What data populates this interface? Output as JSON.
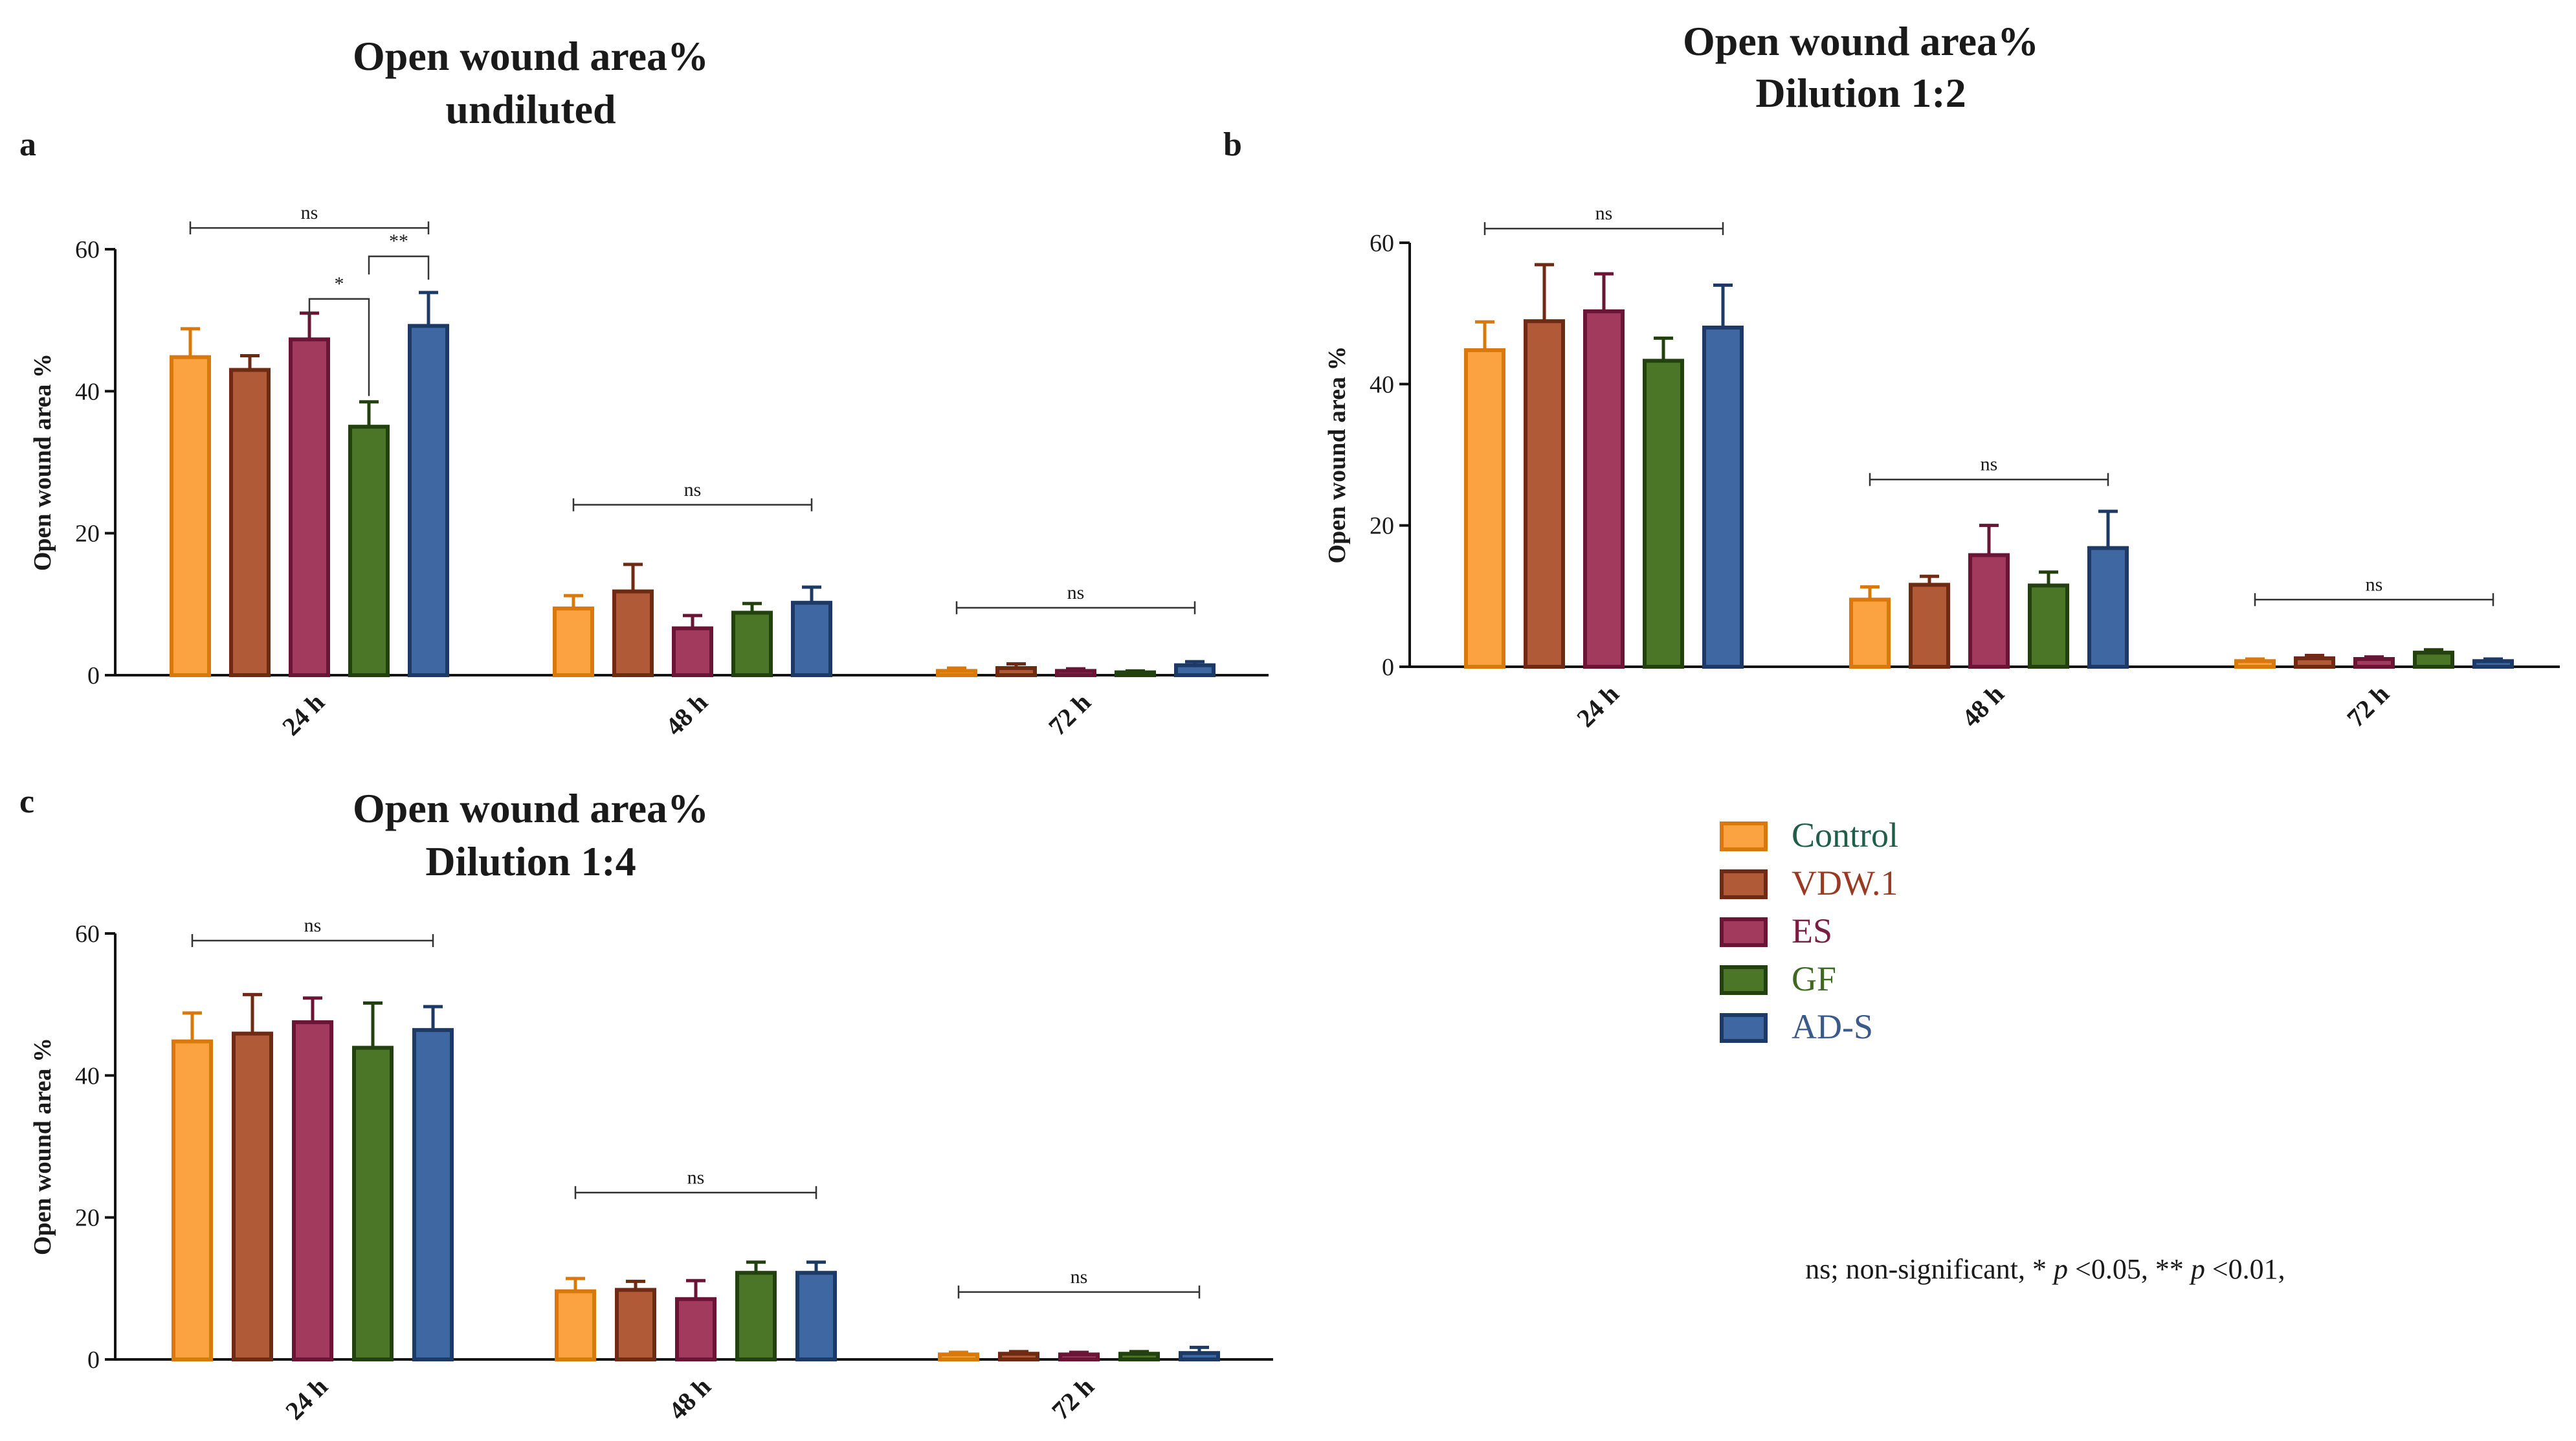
{
  "chart_data": [
    {
      "id": "a",
      "panel_letter": "a",
      "type": "bar",
      "title": [
        "Open wound area%",
        "undiluted"
      ],
      "ylabel": "Open wound area %",
      "ylim": [
        0,
        60
      ],
      "yticks": [
        0,
        20,
        40,
        60
      ],
      "categories": [
        "24 h",
        "48 h",
        "72 h"
      ],
      "series": [
        {
          "name": "Control",
          "values": [
            44.8,
            9.4,
            0.6
          ],
          "errors": [
            4.0,
            1.8,
            0.4
          ]
        },
        {
          "name": "VDW.1",
          "values": [
            43.0,
            11.8,
            1.0
          ],
          "errors": [
            2.0,
            3.8,
            0.6
          ]
        },
        {
          "name": "ES",
          "values": [
            47.3,
            6.6,
            0.6
          ],
          "errors": [
            3.7,
            1.8,
            0.3
          ]
        },
        {
          "name": "GF",
          "values": [
            35.0,
            8.8,
            0.4
          ],
          "errors": [
            3.5,
            1.3,
            0.2
          ]
        },
        {
          "name": "AD-S",
          "values": [
            49.2,
            10.2,
            1.4
          ],
          "errors": [
            4.7,
            2.2,
            0.5
          ]
        }
      ],
      "significance": [
        {
          "category": "24 h",
          "from": "Control",
          "to": "AD-S",
          "label": "ns",
          "level": 63
        },
        {
          "category": "24 h",
          "from": "ES",
          "to": "GF",
          "label": "*",
          "level": 53
        },
        {
          "category": "24 h",
          "from": "GF",
          "to": "AD-S",
          "label": "**",
          "level": 59
        },
        {
          "category": "48 h",
          "from": "Control",
          "to": "AD-S",
          "label": "ns",
          "level": 24
        },
        {
          "category": "72 h",
          "from": "Control",
          "to": "AD-S",
          "label": "ns",
          "level": 9.5
        }
      ]
    },
    {
      "id": "b",
      "panel_letter": "b",
      "type": "bar",
      "title": [
        "Open wound area%",
        "Dilution 1:2"
      ],
      "ylabel": "Open wound area %",
      "ylim": [
        0,
        60
      ],
      "yticks": [
        0,
        20,
        40,
        60
      ],
      "categories": [
        "24 h",
        "48 h",
        "72 h"
      ],
      "series": [
        {
          "name": "Control",
          "values": [
            44.8,
            9.5,
            0.8
          ],
          "errors": [
            4.0,
            1.8,
            0.3
          ]
        },
        {
          "name": "VDW.1",
          "values": [
            48.9,
            11.6,
            1.2
          ],
          "errors": [
            8.0,
            1.2,
            0.4
          ]
        },
        {
          "name": "ES",
          "values": [
            50.3,
            15.8,
            1.1
          ],
          "errors": [
            5.3,
            4.2,
            0.3
          ]
        },
        {
          "name": "GF",
          "values": [
            43.3,
            11.5,
            2.0
          ],
          "errors": [
            3.2,
            1.9,
            0.4
          ]
        },
        {
          "name": "AD-S",
          "values": [
            48.0,
            16.8,
            0.8
          ],
          "errors": [
            6.0,
            5.2,
            0.3
          ]
        }
      ],
      "significance": [
        {
          "category": "24 h",
          "from": "Control",
          "to": "AD-S",
          "label": "ns",
          "level": 62
        },
        {
          "category": "48 h",
          "from": "Control",
          "to": "AD-S",
          "label": "ns",
          "level": 26.5
        },
        {
          "category": "72 h",
          "from": "Control",
          "to": "AD-S",
          "label": "ns",
          "level": 9.5
        }
      ]
    },
    {
      "id": "c",
      "panel_letter": "c",
      "type": "bar",
      "title": [
        "Open wound area%",
        "Dilution 1:4"
      ],
      "ylabel": "Open wound area %",
      "ylim": [
        0,
        60
      ],
      "yticks": [
        0,
        20,
        40,
        60
      ],
      "categories": [
        "24 h",
        "48 h",
        "72 h"
      ],
      "series": [
        {
          "name": "Control",
          "values": [
            44.8,
            9.6,
            0.7
          ],
          "errors": [
            4.0,
            1.8,
            0.3
          ]
        },
        {
          "name": "VDW.1",
          "values": [
            45.9,
            9.8,
            0.8
          ],
          "errors": [
            5.5,
            1.2,
            0.3
          ]
        },
        {
          "name": "ES",
          "values": [
            47.5,
            8.5,
            0.7
          ],
          "errors": [
            3.4,
            2.6,
            0.3
          ]
        },
        {
          "name": "GF",
          "values": [
            43.9,
            12.2,
            0.8
          ],
          "errors": [
            6.3,
            1.5,
            0.3
          ]
        },
        {
          "name": "AD-S",
          "values": [
            46.4,
            12.2,
            0.9
          ],
          "errors": [
            3.3,
            1.5,
            0.8
          ]
        }
      ],
      "significance": [
        {
          "category": "24 h",
          "from": "Control",
          "to": "AD-S",
          "label": "ns",
          "level": 59
        },
        {
          "category": "48 h",
          "from": "Control",
          "to": "AD-S",
          "label": "ns",
          "level": 23.5
        },
        {
          "category": "72 h",
          "from": "Control",
          "to": "AD-S",
          "label": "ns",
          "level": 9.5
        }
      ]
    }
  ],
  "legend": [
    {
      "name": "Control",
      "fill": "#fca341",
      "stroke": "#d9780b",
      "text_color": "#1f5f4a"
    },
    {
      "name": "VDW.1",
      "fill": "#b05a38",
      "stroke": "#6e2a12",
      "text_color": "#9b3a22"
    },
    {
      "name": "ES",
      "fill": "#a23a5e",
      "stroke": "#6a1535",
      "text_color": "#7a1e40"
    },
    {
      "name": "GF",
      "fill": "#4b7628",
      "stroke": "#23400f",
      "text_color": "#3d6a1f"
    },
    {
      "name": "AD-S",
      "fill": "#3f67a1",
      "stroke": "#1d3a66",
      "text_color": "#3a5a8c"
    }
  ],
  "footnote": {
    "prefix": "ns; non-significant, * ",
    "p1": "p",
    "mid": " <0.05, ** ",
    "p2": "p",
    "suffix": " <0.01,"
  }
}
